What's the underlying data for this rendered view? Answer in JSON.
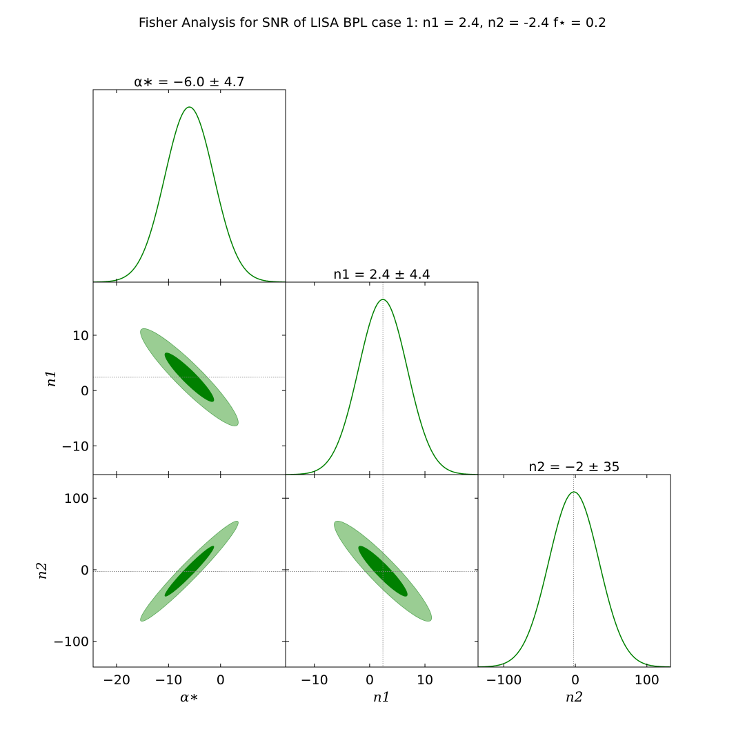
{
  "figure": {
    "title": "Fisher Analysis for SNR of LISA BPL case 1: n1 = 2.4, n2 = -2.4 f⋆ = 0.2"
  },
  "colors": {
    "line": "#008000",
    "contour_inner": "#008000",
    "contour_outer": "#9acd93",
    "marker_line": "#808080"
  },
  "chart_data": {
    "type": "corner",
    "parameters": [
      {
        "name": "α∗",
        "label": "α∗",
        "mean": -6.0,
        "sigma": 4.7,
        "title": "α∗ = −6.0 ± 4.7",
        "range": [
          -24.5,
          12.5
        ],
        "ticks": [
          -20,
          -10,
          0
        ],
        "tick_labels": [
          "−20",
          "−10",
          "0"
        ],
        "marker": null
      },
      {
        "name": "n1",
        "label": "n1",
        "mean": 2.4,
        "sigma": 4.4,
        "title": "n1 = 2.4 ± 4.4",
        "range": [
          -15.2,
          19.6
        ],
        "ticks": [
          -10,
          0,
          10
        ],
        "tick_labels": [
          "−10",
          "0",
          "10"
        ],
        "marker": 2.4
      },
      {
        "name": "n2",
        "label": "n2",
        "mean": -2,
        "sigma": 35,
        "title": "n2 = −2 ± 35",
        "range": [
          -136,
          133
        ],
        "ticks": [
          -100,
          0,
          100
        ],
        "tick_labels": [
          "−100",
          "0",
          "100"
        ],
        "marker": -2.4
      }
    ],
    "correlations": {
      "alpha_n1": -0.93,
      "alpha_n2": 0.97,
      "n1_n2": -0.93
    },
    "contour_levels_sigma": [
      1,
      2
    ],
    "grid": false
  }
}
